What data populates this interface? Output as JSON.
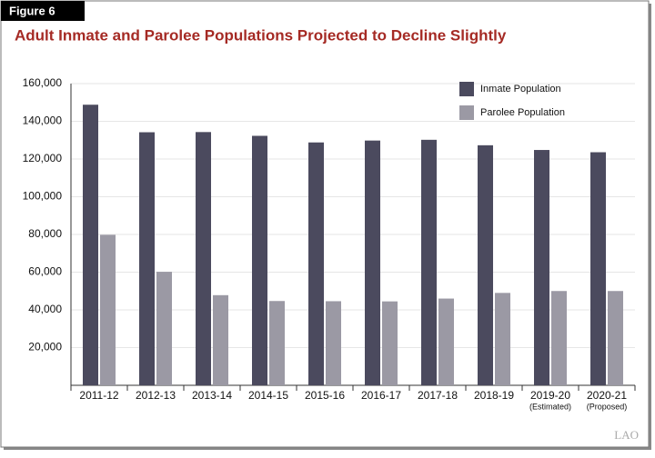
{
  "figure_label": "Figure 6",
  "chart_data": {
    "type": "bar",
    "title": "Adult Inmate and Parolee Populations Projected to Decline Slightly",
    "categories": [
      "2011-12",
      "2012-13",
      "2013-14",
      "2014-15",
      "2015-16",
      "2016-17",
      "2017-18",
      "2018-19",
      "2019-20",
      "2020-21"
    ],
    "category_notes": [
      null,
      null,
      null,
      null,
      null,
      null,
      null,
      null,
      "(Estimated)",
      "(Proposed)"
    ],
    "series": [
      {
        "name": "Inmate Population",
        "color": "#4b4a5e",
        "values": [
          148800,
          134200,
          134300,
          132300,
          128800,
          129800,
          130200,
          127300,
          124800,
          123600
        ]
      },
      {
        "name": "Parolee Population",
        "color": "#9b99a4",
        "values": [
          79800,
          60200,
          47800,
          44700,
          44600,
          44500,
          46000,
          49000,
          50000,
          50000
        ]
      }
    ],
    "ylim": [
      0,
      160000
    ],
    "yticks": [
      {
        "value": 20000,
        "label": "20,000"
      },
      {
        "value": 40000,
        "label": "40,000"
      },
      {
        "value": 60000,
        "label": "60,000"
      },
      {
        "value": 80000,
        "label": "80,000"
      },
      {
        "value": 100000,
        "label": "100,000"
      },
      {
        "value": 120000,
        "label": "120,000"
      },
      {
        "value": 140000,
        "label": "140,000"
      },
      {
        "value": 160000,
        "label": "160,000"
      }
    ],
    "grid": true,
    "legend": "top-right"
  },
  "source_logo": "LAO"
}
